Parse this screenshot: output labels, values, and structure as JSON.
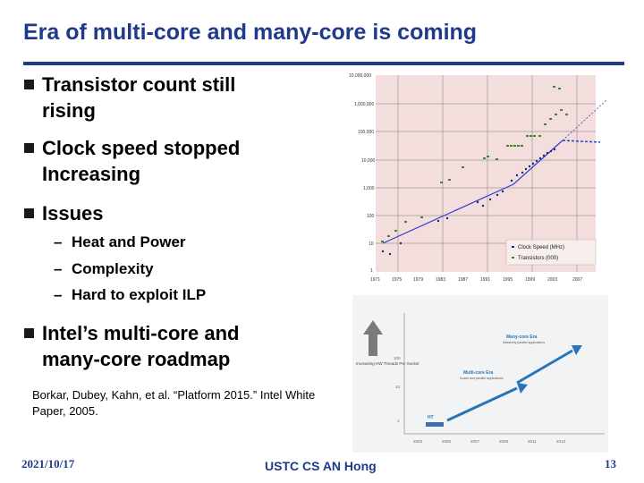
{
  "slide": {
    "title": "Era of multi-core and many-core is coming",
    "bullets": [
      {
        "text1": "Transistor count still",
        "text2": "rising"
      },
      {
        "text1": "Clock speed stopped",
        "text2": "Increasing"
      },
      {
        "text1": "Issues"
      },
      {
        "text1": "Intel’s multi-core and",
        "text2": "many-core roadmap"
      }
    ],
    "subbullets": [
      "Heat and Power",
      "Complexity",
      "Hard to exploit ILP"
    ],
    "citation": "Borkar, Dubey, Kahn, et al. “Platform 2015.” Intel White Paper, 2005."
  },
  "footer": {
    "date": "2021/10/17",
    "center": "USTC CS AN Hong",
    "page": "13"
  },
  "chart_data": [
    {
      "type": "scatter",
      "ylabels": [
        "10,000,000",
        "1,000,000",
        "100,000",
        "10,000",
        "1,000",
        "100",
        "10",
        "1"
      ],
      "xlabels": [
        "1971",
        "1975",
        "1979",
        "1983",
        "1987",
        "1991",
        "1995",
        "1999",
        "2003",
        "2007"
      ],
      "legend": [
        "Clock Speed (MHz)",
        "Transistors (000)"
      ],
      "colors": {
        "background": "#f4dedd",
        "clock": "#1a237e",
        "transistors": "#3a8a2a",
        "trend": "#2f3fd0"
      },
      "x_axis": "log",
      "y_scale": "log"
    },
    {
      "type": "line",
      "left_label": "Increasing HW Threads Per Socket",
      "yticks": [
        "100",
        "10",
        "1"
      ],
      "xticks": [
        "2003",
        "2005",
        "2007",
        "2009",
        "2011",
        "2013"
      ],
      "labels": {
        "ht": "HT",
        "multi_core": "Multi-core Era",
        "multi_core_sub": "Scalar and parallel applications",
        "many_core": "Many-core Era",
        "many_core_sub": "Massively parallel applications"
      },
      "colors": {
        "background": "#f1f3f4",
        "arrow": "#2a73b8",
        "ht_bar": "#3d6fb0"
      }
    }
  ]
}
